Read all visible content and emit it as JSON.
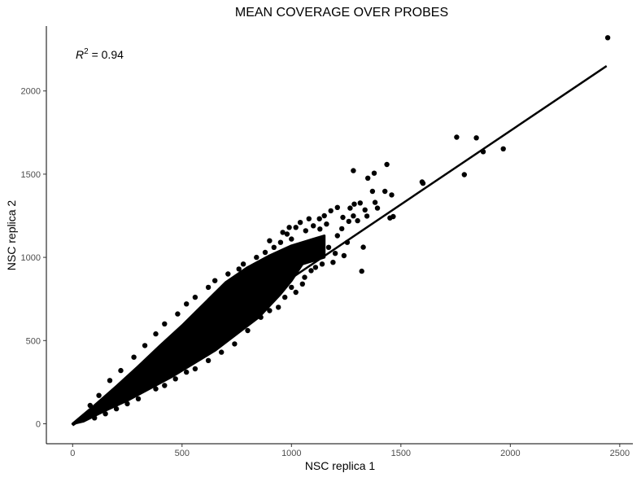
{
  "chart_data": {
    "type": "scatter",
    "title": "MEAN COVERAGE OVER PROBES",
    "xlabel": "NSC replica 1",
    "ylabel": "NSC replica 2",
    "xlim": [
      -120,
      2560
    ],
    "ylim": [
      -120,
      2390
    ],
    "xticks": [
      0,
      500,
      1000,
      1500,
      2000,
      2500
    ],
    "yticks": [
      0,
      500,
      1000,
      1500,
      2000
    ],
    "grid": false,
    "legend": "none",
    "annotation": {
      "prefix": "R",
      "superscript": "2",
      "suffix": " = 0.94"
    },
    "point_color": "#000000",
    "line_color": "#000000",
    "fit_line": {
      "x": [
        0,
        2440
      ],
      "y": [
        -10,
        2150
      ]
    },
    "dense_cloud": {
      "upper": [
        [
          0,
          0
        ],
        [
          100,
          110
        ],
        [
          200,
          225
        ],
        [
          300,
          345
        ],
        [
          400,
          470
        ],
        [
          500,
          590
        ],
        [
          600,
          720
        ],
        [
          700,
          850
        ],
        [
          800,
          940
        ],
        [
          900,
          1010
        ],
        [
          1000,
          1070
        ],
        [
          1100,
          1110
        ],
        [
          1150,
          1130
        ]
      ],
      "lower": [
        [
          1150,
          1000
        ],
        [
          1050,
          960
        ],
        [
          1000,
          860
        ],
        [
          950,
          780
        ],
        [
          850,
          640
        ],
        [
          750,
          540
        ],
        [
          650,
          440
        ],
        [
          550,
          360
        ],
        [
          450,
          280
        ],
        [
          350,
          210
        ],
        [
          250,
          140
        ],
        [
          150,
          80
        ],
        [
          50,
          15
        ],
        [
          0,
          0
        ]
      ]
    },
    "points": [
      {
        "x": 2445,
        "y": 2320
      },
      {
        "x": 1755,
        "y": 1722
      },
      {
        "x": 1845,
        "y": 1718
      },
      {
        "x": 1968,
        "y": 1652
      },
      {
        "x": 1876,
        "y": 1635
      },
      {
        "x": 1790,
        "y": 1497
      },
      {
        "x": 1597,
        "y": 1453
      },
      {
        "x": 1601,
        "y": 1445
      },
      {
        "x": 1283,
        "y": 1521
      },
      {
        "x": 1436,
        "y": 1558
      },
      {
        "x": 1378,
        "y": 1506
      },
      {
        "x": 1349,
        "y": 1476
      },
      {
        "x": 1370,
        "y": 1397
      },
      {
        "x": 1427,
        "y": 1397
      },
      {
        "x": 1458,
        "y": 1375
      },
      {
        "x": 1465,
        "y": 1245
      },
      {
        "x": 1450,
        "y": 1237
      },
      {
        "x": 1345,
        "y": 1248
      },
      {
        "x": 1283,
        "y": 1249
      },
      {
        "x": 1382,
        "y": 1330
      },
      {
        "x": 1393,
        "y": 1296
      },
      {
        "x": 1314,
        "y": 1327
      },
      {
        "x": 1287,
        "y": 1320
      },
      {
        "x": 1336,
        "y": 1285
      },
      {
        "x": 1268,
        "y": 1296
      },
      {
        "x": 1302,
        "y": 1220
      },
      {
        "x": 1262,
        "y": 1216
      },
      {
        "x": 1328,
        "y": 1061
      },
      {
        "x": 1321,
        "y": 917
      },
      {
        "x": 1235,
        "y": 1240
      },
      {
        "x": 1230,
        "y": 1172
      },
      {
        "x": 1210,
        "y": 1130
      },
      {
        "x": 1255,
        "y": 1090
      },
      {
        "x": 1200,
        "y": 1024
      },
      {
        "x": 1190,
        "y": 970
      },
      {
        "x": 1240,
        "y": 1010
      },
      {
        "x": 1170,
        "y": 1060
      },
      {
        "x": 1160,
        "y": 1200
      },
      {
        "x": 1128,
        "y": 1232
      },
      {
        "x": 1080,
        "y": 1232
      },
      {
        "x": 1100,
        "y": 1190
      },
      {
        "x": 1065,
        "y": 1160
      },
      {
        "x": 1040,
        "y": 1210
      },
      {
        "x": 1020,
        "y": 1180
      },
      {
        "x": 980,
        "y": 1140
      },
      {
        "x": 1000,
        "y": 1110
      },
      {
        "x": 1130,
        "y": 1170
      },
      {
        "x": 1110,
        "y": 940
      },
      {
        "x": 1090,
        "y": 920
      },
      {
        "x": 1060,
        "y": 880
      },
      {
        "x": 1140,
        "y": 960
      },
      {
        "x": 1050,
        "y": 840
      },
      {
        "x": 1000,
        "y": 820
      },
      {
        "x": 1020,
        "y": 790
      },
      {
        "x": 970,
        "y": 760
      },
      {
        "x": 940,
        "y": 700
      },
      {
        "x": 900,
        "y": 680
      },
      {
        "x": 860,
        "y": 640
      },
      {
        "x": 920,
        "y": 1060
      },
      {
        "x": 950,
        "y": 1090
      },
      {
        "x": 880,
        "y": 1030
      },
      {
        "x": 840,
        "y": 1000
      },
      {
        "x": 780,
        "y": 960
      },
      {
        "x": 760,
        "y": 930
      },
      {
        "x": 710,
        "y": 900
      },
      {
        "x": 650,
        "y": 860
      },
      {
        "x": 620,
        "y": 820
      },
      {
        "x": 560,
        "y": 760
      },
      {
        "x": 520,
        "y": 720
      },
      {
        "x": 480,
        "y": 660
      },
      {
        "x": 420,
        "y": 600
      },
      {
        "x": 380,
        "y": 540
      },
      {
        "x": 330,
        "y": 470
      },
      {
        "x": 280,
        "y": 400
      },
      {
        "x": 220,
        "y": 320
      },
      {
        "x": 170,
        "y": 260
      },
      {
        "x": 120,
        "y": 170
      },
      {
        "x": 80,
        "y": 110
      },
      {
        "x": 560,
        "y": 330
      },
      {
        "x": 620,
        "y": 380
      },
      {
        "x": 520,
        "y": 310
      },
      {
        "x": 470,
        "y": 270
      },
      {
        "x": 420,
        "y": 230
      },
      {
        "x": 380,
        "y": 210
      },
      {
        "x": 300,
        "y": 150
      },
      {
        "x": 250,
        "y": 120
      },
      {
        "x": 200,
        "y": 90
      },
      {
        "x": 150,
        "y": 60
      },
      {
        "x": 100,
        "y": 35
      },
      {
        "x": 680,
        "y": 430
      },
      {
        "x": 740,
        "y": 480
      },
      {
        "x": 800,
        "y": 560
      },
      {
        "x": 960,
        "y": 1150
      },
      {
        "x": 990,
        "y": 1180
      },
      {
        "x": 900,
        "y": 1100
      },
      {
        "x": 1180,
        "y": 1280
      },
      {
        "x": 1210,
        "y": 1300
      },
      {
        "x": 1150,
        "y": 1250
      }
    ]
  }
}
